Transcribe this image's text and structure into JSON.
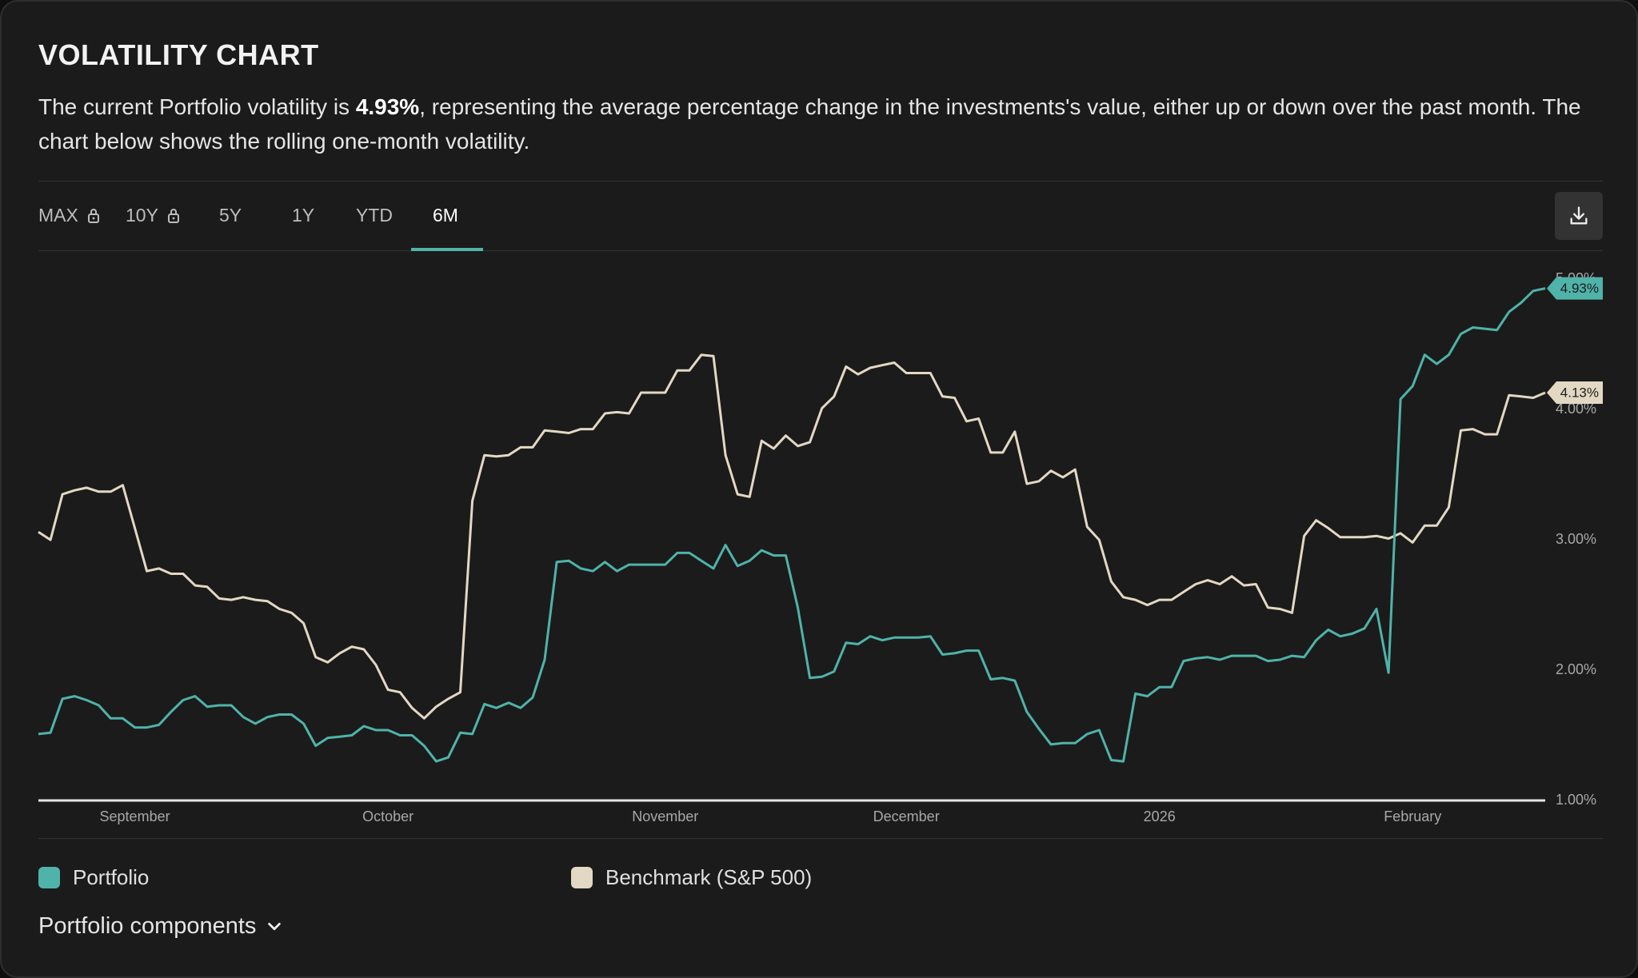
{
  "header": {
    "title": "VOLATILITY CHART",
    "description": [
      "The current Portfolio volatility is ",
      "4.93%",
      ", representing the average percentage change in the investments's value, either up or down over the past month. The chart below shows the rolling one-month volatility."
    ]
  },
  "tabs": [
    {
      "label": "MAX",
      "locked": true
    },
    {
      "label": "10Y",
      "locked": true
    },
    {
      "label": "5Y",
      "locked": false
    },
    {
      "label": "1Y",
      "locked": false
    },
    {
      "label": "YTD",
      "locked": false
    },
    {
      "label": "6M",
      "locked": false
    }
  ],
  "active_tab": 5,
  "chart_data": {
    "type": "line",
    "categories": [
      null,
      null,
      null,
      null,
      null,
      null,
      null,
      null,
      "September",
      null,
      null,
      null,
      null,
      null,
      null,
      null,
      null,
      null,
      null,
      null,
      null,
      null,
      null,
      null,
      null,
      null,
      null,
      null,
      null,
      "October",
      null,
      null,
      null,
      null,
      null,
      null,
      null,
      null,
      null,
      null,
      null,
      null,
      null,
      null,
      null,
      null,
      null,
      null,
      null,
      null,
      null,
      null,
      "November",
      null,
      null,
      null,
      null,
      null,
      null,
      null,
      null,
      null,
      null,
      null,
      null,
      null,
      null,
      null,
      null,
      null,
      null,
      null,
      "December",
      null,
      null,
      null,
      null,
      null,
      null,
      null,
      null,
      null,
      null,
      null,
      null,
      null,
      null,
      null,
      null,
      null,
      null,
      null,
      null,
      "2026",
      null,
      null,
      null,
      null,
      null,
      null,
      null,
      null,
      null,
      null,
      null,
      null,
      null,
      null,
      null,
      null,
      null,
      null,
      null,
      null,
      "February",
      null,
      null,
      null,
      null,
      null,
      null,
      null,
      null,
      null,
      null,
      null
    ],
    "series": [
      {
        "name": "Portfolio",
        "color": "#4fb3a9",
        "current_label": "4.93%",
        "values": [
          1.51,
          1.52,
          1.78,
          1.8,
          1.77,
          1.73,
          1.63,
          1.63,
          1.56,
          1.56,
          1.58,
          1.68,
          1.77,
          1.8,
          1.72,
          1.73,
          1.73,
          1.64,
          1.59,
          1.64,
          1.66,
          1.66,
          1.59,
          1.42,
          1.48,
          1.49,
          1.5,
          1.57,
          1.54,
          1.54,
          1.5,
          1.5,
          1.42,
          1.3,
          1.33,
          1.52,
          1.51,
          1.74,
          1.71,
          1.75,
          1.71,
          1.79,
          2.08,
          2.83,
          2.84,
          2.78,
          2.76,
          2.83,
          2.76,
          2.81,
          2.81,
          2.81,
          2.81,
          2.9,
          2.9,
          2.84,
          2.78,
          2.96,
          2.8,
          2.84,
          2.92,
          2.88,
          2.88,
          2.48,
          1.94,
          1.95,
          1.99,
          2.21,
          2.2,
          2.26,
          2.23,
          2.25,
          2.25,
          2.25,
          2.26,
          2.12,
          2.13,
          2.15,
          2.15,
          1.93,
          1.94,
          1.92,
          1.68,
          1.55,
          1.43,
          1.44,
          1.44,
          1.51,
          1.54,
          1.31,
          1.3,
          1.82,
          1.8,
          1.87,
          1.87,
          2.07,
          2.09,
          2.1,
          2.08,
          2.11,
          2.11,
          2.11,
          2.07,
          2.08,
          2.11,
          2.1,
          2.23,
          2.31,
          2.26,
          2.28,
          2.32,
          2.47,
          1.98,
          4.08,
          4.18,
          4.42,
          4.35,
          4.42,
          4.58,
          4.63,
          4.62,
          4.61,
          4.75,
          4.82,
          4.91,
          4.93
        ]
      },
      {
        "name": "Benchmark (S&P 500)",
        "color": "#e3d8c3",
        "current_label": "4.13%",
        "values": [
          3.06,
          3.0,
          3.35,
          3.38,
          3.4,
          3.37,
          3.37,
          3.42,
          3.09,
          2.76,
          2.78,
          2.74,
          2.74,
          2.65,
          2.64,
          2.55,
          2.54,
          2.56,
          2.54,
          2.53,
          2.47,
          2.44,
          2.36,
          2.1,
          2.06,
          2.13,
          2.18,
          2.16,
          2.04,
          1.85,
          1.83,
          1.71,
          1.63,
          1.72,
          1.78,
          1.83,
          3.3,
          3.65,
          3.64,
          3.65,
          3.71,
          3.71,
          3.84,
          3.83,
          3.82,
          3.85,
          3.85,
          3.97,
          3.98,
          3.97,
          4.13,
          4.13,
          4.13,
          4.3,
          4.3,
          4.42,
          4.41,
          3.65,
          3.35,
          3.33,
          3.76,
          3.7,
          3.8,
          3.72,
          3.75,
          4.01,
          4.1,
          4.33,
          4.27,
          4.32,
          4.34,
          4.36,
          4.28,
          4.28,
          4.28,
          4.1,
          4.09,
          3.91,
          3.93,
          3.67,
          3.67,
          3.83,
          3.43,
          3.45,
          3.53,
          3.48,
          3.54,
          3.1,
          3.0,
          2.68,
          2.56,
          2.54,
          2.5,
          2.54,
          2.54,
          2.6,
          2.66,
          2.69,
          2.66,
          2.72,
          2.65,
          2.66,
          2.48,
          2.47,
          2.44,
          3.03,
          3.15,
          3.09,
          3.02,
          3.02,
          3.02,
          3.03,
          3.01,
          3.05,
          2.98,
          3.11,
          3.11,
          3.25,
          3.84,
          3.85,
          3.81,
          3.81,
          4.11,
          4.1,
          4.09,
          4.13
        ]
      }
    ],
    "ylim": [
      1,
      5.13
    ],
    "yticks": [
      {
        "value": 1,
        "label": "1.00%"
      },
      {
        "value": 2,
        "label": "2.00%"
      },
      {
        "value": 3,
        "label": "3.00%"
      },
      {
        "value": 4,
        "label": "4.00%"
      },
      {
        "value": 5,
        "label": "5.00%"
      }
    ],
    "grid": false
  },
  "footer": {
    "components": "Portfolio components"
  }
}
